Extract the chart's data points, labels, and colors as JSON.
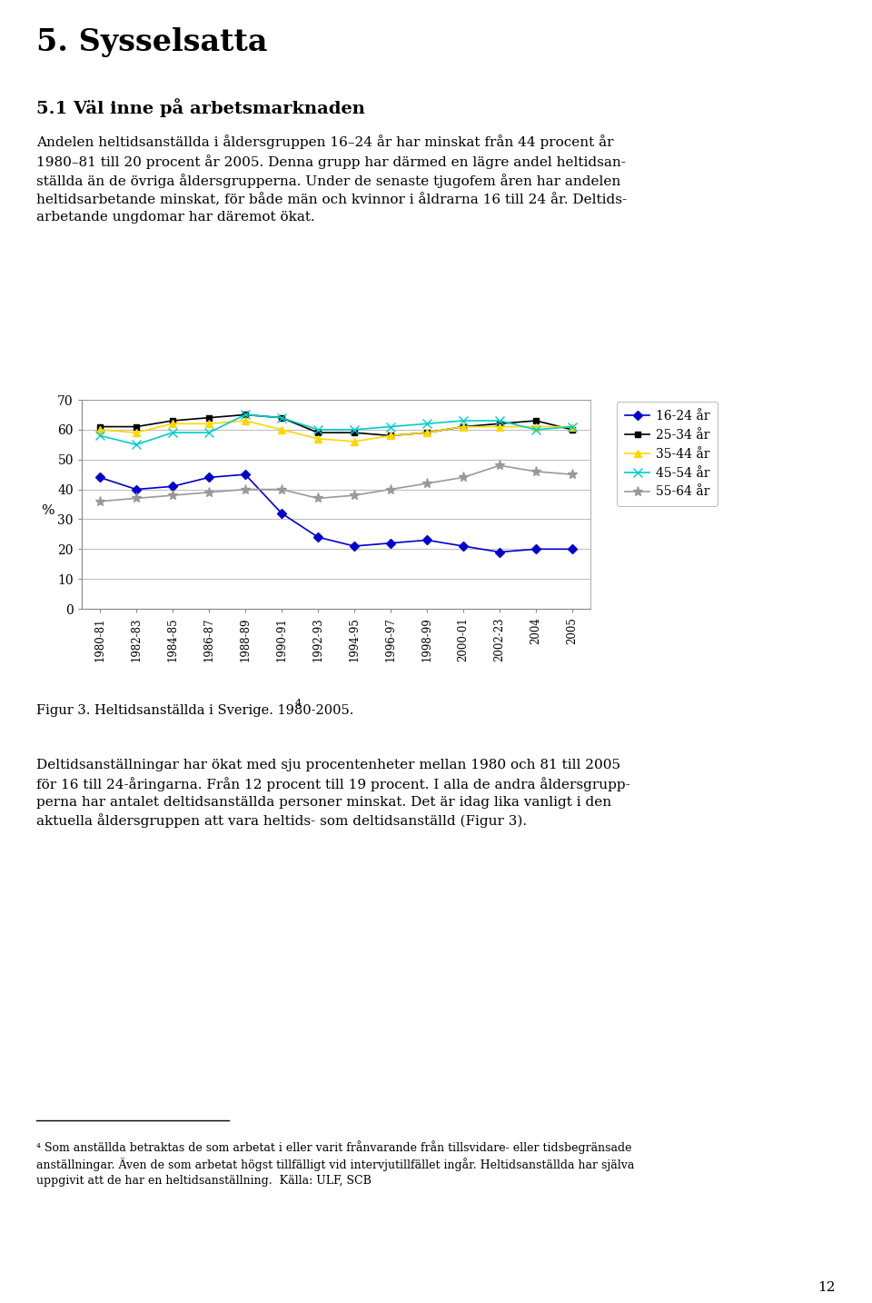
{
  "x_labels": [
    "1980-81",
    "1982-83",
    "1984-85",
    "1986-87",
    "1988-89",
    "1990-91",
    "1992-93",
    "1994-95",
    "1996-97",
    "1998-99",
    "2000-01",
    "2002-23",
    "2004",
    "2005"
  ],
  "series": {
    "16-24 år": {
      "color": "#0000CC",
      "marker": "D",
      "markersize": 5,
      "values": [
        44,
        40,
        41,
        44,
        45,
        32,
        24,
        21,
        22,
        23,
        21,
        19,
        20,
        20
      ]
    },
    "25-34 år": {
      "color": "#000000",
      "marker": "s",
      "markersize": 5,
      "values": [
        61,
        61,
        63,
        64,
        65,
        64,
        59,
        59,
        58,
        59,
        61,
        62,
        63,
        60
      ]
    },
    "35-44 år": {
      "color": "#FFD700",
      "marker": "^",
      "markersize": 6,
      "values": [
        60,
        59,
        62,
        62,
        63,
        60,
        57,
        56,
        58,
        59,
        61,
        61,
        61,
        61
      ]
    },
    "45-54 år": {
      "color": "#00CCCC",
      "marker": "x",
      "markersize": 7,
      "values": [
        58,
        55,
        59,
        59,
        65,
        64,
        60,
        60,
        61,
        62,
        63,
        63,
        60,
        61
      ]
    },
    "55-64 år": {
      "color": "#999999",
      "marker": "*",
      "markersize": 8,
      "values": [
        36,
        37,
        38,
        39,
        40,
        40,
        37,
        38,
        40,
        42,
        44,
        48,
        46,
        45
      ]
    }
  },
  "ylabel": "%",
  "ylim": [
    0,
    70
  ],
  "yticks": [
    0,
    10,
    20,
    30,
    40,
    50,
    60,
    70
  ],
  "grid_color": "#C0C0C0",
  "background_color": "#FFFFFF",
  "plot_bg_color": "#FFFFFF",
  "title_main": "5. Sysselsatta",
  "title_section": "5.1 Väl inne på arbetsmarknaden",
  "body_text1_lines": [
    "Andelen heltidsanställda i åldersgruppen 16–24 år har minskat från 44 procent år",
    "1980–81 till 20 procent år 2005. Denna grupp har därmed en lägre andel heltidsan-",
    "ställda än de övriga åldersgrupperna. Under de senaste tjugofem åren har andelen",
    "heltidsarbetande minskat, för både män och kvinnor i åldrarna 16 till 24 år. Deltids-",
    "arbetande ungdomar har däremot ökat."
  ],
  "caption": "Figur 3. Heltidsanställda i Sverige. 1980-2005.",
  "caption_superscript": "4",
  "body_text2_lines": [
    "Deltidsanställningar har ökat med sju procentenheter mellan 1980 och 81 till 2005",
    "för 16 till 24-åringarna. Från 12 procent till 19 procent. I alla de andra åldersgrupp-",
    "perna har antalet deltidsanställda personer minskat. Det är idag lika vanligt i den",
    "aktuella åldersgruppen att vara heltids- som deltidsanställd (Figur 3)."
  ],
  "footnote_lines": [
    "⁴ Som anställda betraktas de som arbetat i eller varit frånvarande från tillsvidare- eller tidsbegränsade",
    "anställningar. Även de som arbetat högst tillfälligt vid intervjutillfället ingår. Heltidsanställda har själva",
    "uppgivit att de har en heltidsanställning.  Källa: ULF, SCB"
  ],
  "page_number": "12",
  "legend_labels": [
    "16-24 år",
    "25-34 år",
    "35-44 år",
    "45-54 år",
    "55-64 år"
  ]
}
